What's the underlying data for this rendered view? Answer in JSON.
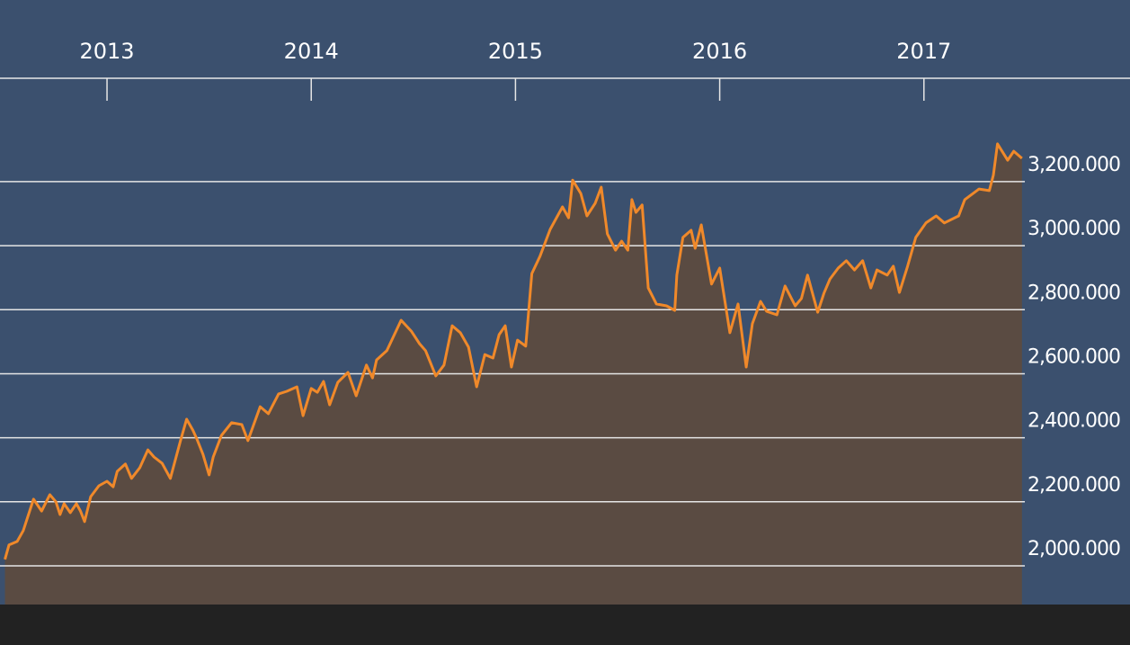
{
  "chart_data": {
    "type": "area",
    "series": [
      {
        "color": "#f0892a",
        "fill": "#5a4b42",
        "x": [
          2012.5,
          2012.52,
          2012.56,
          2012.59,
          2012.64,
          2012.68,
          2012.72,
          2012.75,
          2012.77,
          2012.79,
          2012.82,
          2012.85,
          2012.87,
          2012.89,
          2012.92,
          2012.96,
          2013.0,
          2013.03,
          2013.05,
          2013.09,
          2013.12,
          2013.16,
          2013.2,
          2013.23,
          2013.27,
          2013.31,
          2013.36,
          2013.39,
          2013.42,
          2013.44,
          2013.47,
          2013.5,
          2013.52,
          2013.56,
          2013.61,
          2013.66,
          2013.69,
          2013.75,
          2013.79,
          2013.84,
          2013.88,
          2013.93,
          2013.96,
          2014.0,
          2014.03,
          2014.06,
          2014.09,
          2014.13,
          2014.18,
          2014.22,
          2014.27,
          2014.3,
          2014.32,
          2014.37,
          2014.44,
          2014.49,
          2014.53,
          2014.56,
          2014.61,
          2014.65,
          2014.69,
          2014.73,
          2014.77,
          2014.81,
          2014.85,
          2014.89,
          2014.92,
          2014.95,
          2014.98,
          2015.01,
          2015.05,
          2015.08,
          2015.12,
          2015.17,
          2015.23,
          2015.26,
          2015.28,
          2015.32,
          2015.35,
          2015.39,
          2015.42,
          2015.45,
          2015.49,
          2015.52,
          2015.55,
          2015.57,
          2015.59,
          2015.62,
          2015.65,
          2015.69,
          2015.74,
          2015.78,
          2015.79,
          2015.82,
          2015.86,
          2015.88,
          2015.91,
          2015.96,
          2016.0,
          2016.05,
          2016.09,
          2016.13,
          2016.16,
          2016.2,
          2016.23,
          2016.28,
          2016.32,
          2016.37,
          2016.4,
          2016.43,
          2016.48,
          2016.51,
          2016.54,
          2016.58,
          2016.62,
          2016.66,
          2016.7,
          2016.74,
          2016.77,
          2016.82,
          2016.85,
          2016.88,
          2016.92,
          2016.96,
          2017.01,
          2017.06,
          2017.1,
          2017.17,
          2017.2,
          2017.27,
          2017.32,
          2017.34,
          2017.36,
          2017.41,
          2017.44,
          2017.48
        ],
        "values": [
          2020,
          2065,
          2076,
          2110,
          2208,
          2171,
          2222,
          2200,
          2160,
          2194,
          2166,
          2194,
          2171,
          2138,
          2216,
          2250,
          2264,
          2247,
          2295,
          2318,
          2273,
          2306,
          2362,
          2340,
          2320,
          2273,
          2391,
          2458,
          2424,
          2396,
          2348,
          2284,
          2340,
          2407,
          2447,
          2441,
          2391,
          2497,
          2475,
          2537,
          2545,
          2559,
          2469,
          2554,
          2542,
          2576,
          2503,
          2573,
          2604,
          2531,
          2627,
          2587,
          2643,
          2672,
          2767,
          2733,
          2694,
          2672,
          2593,
          2627,
          2750,
          2728,
          2683,
          2559,
          2660,
          2649,
          2722,
          2750,
          2621,
          2705,
          2686,
          2913,
          2967,
          3051,
          3121,
          3087,
          3205,
          3163,
          3093,
          3132,
          3183,
          3037,
          2986,
          3014,
          2986,
          3144,
          3104,
          3127,
          2868,
          2818,
          2812,
          2798,
          2908,
          3026,
          3048,
          2992,
          3065,
          2880,
          2930,
          2728,
          2818,
          2621,
          2756,
          2826,
          2795,
          2784,
          2874,
          2812,
          2835,
          2908,
          2792,
          2851,
          2896,
          2930,
          2953,
          2924,
          2953,
          2868,
          2924,
          2908,
          2936,
          2854,
          2936,
          3026,
          3071,
          3093,
          3071,
          3093,
          3144,
          3177,
          3172,
          3220,
          3318,
          3267,
          3295,
          3273
        ]
      }
    ],
    "xlim": [
      2012.476,
      2017.494
    ],
    "xticks": [
      2013,
      2014,
      2015,
      2016,
      2017
    ],
    "ylim": [
      1879,
      3523
    ],
    "yticks": [
      {
        "value": 2000,
        "label": "2,000.000"
      },
      {
        "value": 2200,
        "label": "2,200.000"
      },
      {
        "value": 2400,
        "label": "2,400.000"
      },
      {
        "value": 2600,
        "label": "2,600.000"
      },
      {
        "value": 2800,
        "label": "2,800.000"
      },
      {
        "value": 3000,
        "label": "3,000.000"
      },
      {
        "value": 3200,
        "label": "3,200.000"
      }
    ],
    "grid": true
  }
}
